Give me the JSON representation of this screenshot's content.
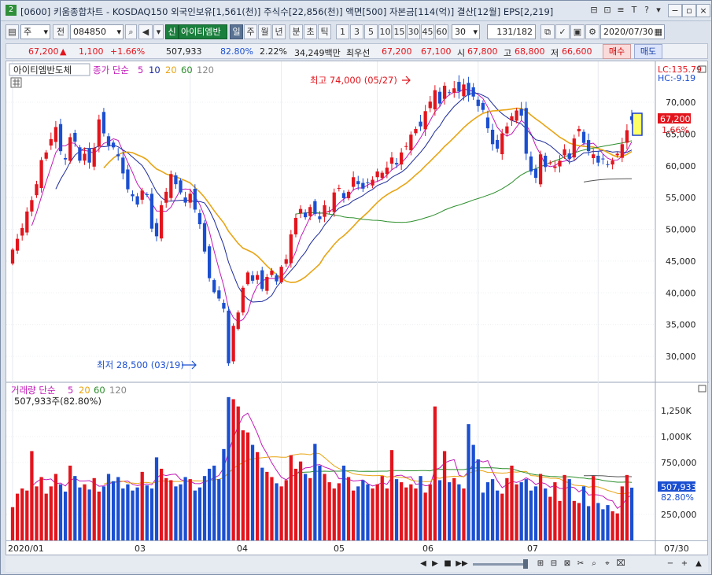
{
  "window": {
    "badge": "2",
    "title": "[0600] 키움종합차트 - KOSDAQ150 외국인보유[1,561(천)] 주식수[22,856(천)] 액면[500] 자본금[114(억)] 결산[12월] EPS[2,219]",
    "title_ctl_labels": [
      "⊟",
      "⊡",
      "≡",
      "T",
      "?",
      "▾"
    ],
    "min_label": "−",
    "max_label": "▫",
    "close_label": "×"
  },
  "toolbar": {
    "market_select": "주",
    "prev_label": "전",
    "code_value": "084850",
    "stock_name": "아이티엠반",
    "shin_label": "신",
    "period_tabs": [
      "일",
      "주",
      "월",
      "년",
      "분",
      "초",
      "틱"
    ],
    "active_period": "일",
    "interval_buttons": [
      "1",
      "3",
      "5",
      "10",
      "15",
      "30",
      "45",
      "60"
    ],
    "interval_value": "30",
    "page_value": "131/182",
    "date_value": "2020/07/30"
  },
  "quote": {
    "price": "67,200",
    "change_arrow": "▲",
    "change": "1,100",
    "change_pct": "+1.66%",
    "volume": "507,933",
    "volume_ratio": "82.80%",
    "turnover": "2.22%",
    "amount": "34,249백만",
    "priority_label": "최우선",
    "best_ask": "67,200",
    "best_bid": "67,100",
    "open_label": "시",
    "open": "67,800",
    "high_label": "고",
    "high": "68,800",
    "low_label": "저",
    "low": "66,600",
    "buy_label": "매수",
    "sell_label": "매도"
  },
  "price_panel": {
    "stock_label": "아이티엠반도체",
    "legend_prefix": "종가 단순",
    "ma_labels": [
      "5",
      "10",
      "20",
      "60",
      "120"
    ],
    "lc_label": "LC:135.79",
    "hc_label": "HC:-9.19",
    "high_annot": "최고 74,000 (05/27)",
    "low_annot": "최저 28,500 (03/19)",
    "last_price_box": "67,200",
    "last_pct": "1.66%",
    "y_ticks": [
      "70,000",
      "65,000",
      "60,000",
      "55,000",
      "50,000",
      "45,000",
      "40,000",
      "35,000",
      "30,000"
    ]
  },
  "volume_panel": {
    "legend_prefix": "거래량 단순",
    "ma_labels": [
      "5",
      "20",
      "60",
      "120"
    ],
    "summary": "507,933주(82.80%)",
    "y_ticks": [
      "1,250K",
      "1,000K",
      "750,000",
      "250,000"
    ],
    "last_box": "507,933",
    "last_pct": "82.80%"
  },
  "x_axis": {
    "labels": [
      "2020/01",
      "03",
      "04",
      "05",
      "06",
      "07"
    ],
    "right_label": "07/30"
  },
  "nav": {
    "buttons": [
      "◀",
      "▶",
      "■",
      "▶▶"
    ],
    "right_icons": [
      "⊞",
      "⊟",
      "⊠",
      "✂",
      "⌕",
      "⌖",
      "⌧",
      "−",
      "+",
      "▲"
    ]
  },
  "colors": {
    "up": "#e3141c",
    "down": "#1b4fd1",
    "ma5": "#c21ab8",
    "ma10": "#1c2a9a",
    "ma20": "#e8a413",
    "ma60": "#2c8f2c",
    "ma120": "#555555"
  },
  "chart_data": [
    {
      "type": "candlestick",
      "title": "아이티엠반도체",
      "x_range": [
        "2020/01/02",
        "2020/07/30"
      ],
      "ylim": [
        26000,
        76000
      ],
      "closes": [
        46800,
        48500,
        50200,
        52800,
        54600,
        57100,
        60900,
        62100,
        64200,
        66100,
        62300,
        61000,
        64500,
        63800,
        60800,
        61900,
        60500,
        62800,
        67300,
        65100,
        63200,
        62900,
        61500,
        58800,
        56300,
        55200,
        53900,
        56100,
        55400,
        50100,
        48900,
        53800,
        55900,
        58700,
        57100,
        55800,
        54200,
        55600,
        53100,
        50800,
        46500,
        42300,
        40100,
        39100,
        37500,
        28900,
        34800,
        36900,
        40800,
        43200,
        41900,
        42800,
        40600,
        42500,
        43500,
        41800,
        44100,
        45300,
        49200,
        51800,
        53200,
        51900,
        53500,
        52400,
        51600,
        53800,
        52900,
        55800,
        56500,
        54900,
        55900,
        58200,
        57100,
        56400,
        57300,
        57800,
        59100,
        58900,
        59700,
        61300,
        60200,
        62100,
        63100,
        64900,
        65800,
        66200,
        68600,
        70100,
        71900,
        69800,
        72600,
        71500,
        72200,
        71700,
        72800,
        71100,
        70900,
        69400,
        68800,
        65900,
        63400,
        62700,
        65100,
        66200,
        67800,
        68700,
        67900,
        61900,
        59100,
        58100,
        61800,
        59800,
        60500,
        59900,
        60800,
        62600,
        61100,
        64300,
        65800,
        63600,
        62300,
        61800,
        60500,
        61100,
        60200,
        60800,
        61900,
        63400,
        65600,
        67200
      ],
      "high": {
        "value": 74000,
        "date": "05/27"
      },
      "low": {
        "value": 28500,
        "date": "03/19"
      },
      "last": 67200,
      "ma_periods": [
        5,
        10,
        20,
        60,
        120
      ]
    },
    {
      "type": "bar",
      "title": "거래량",
      "ylim": [
        0,
        1400000
      ],
      "values": [
        320000,
        450000,
        500000,
        480000,
        860000,
        520000,
        610000,
        450000,
        520000,
        640000,
        540000,
        470000,
        720000,
        620000,
        510000,
        540000,
        490000,
        600000,
        470000,
        520000,
        640000,
        570000,
        610000,
        500000,
        540000,
        480000,
        510000,
        660000,
        530000,
        500000,
        800000,
        690000,
        600000,
        580000,
        520000,
        540000,
        610000,
        590000,
        480000,
        510000,
        620000,
        690000,
        720000,
        590000,
        880000,
        1380000,
        1360000,
        1290000,
        1060000,
        1040000,
        920000,
        850000,
        700000,
        660000,
        610000,
        550000,
        520000,
        580000,
        820000,
        690000,
        760000,
        640000,
        600000,
        930000,
        720000,
        640000,
        560000,
        500000,
        550000,
        720000,
        610000,
        480000,
        520000,
        580000,
        540000,
        500000,
        540000,
        620000,
        500000,
        870000,
        590000,
        560000,
        510000,
        540000,
        500000,
        620000,
        460000,
        540000,
        1290000,
        580000,
        860000,
        560000,
        600000,
        540000,
        500000,
        1120000,
        920000,
        780000,
        460000,
        560000,
        590000,
        480000,
        450000,
        600000,
        720000,
        540000,
        560000,
        590000,
        480000,
        520000,
        640000,
        500000,
        420000,
        560000,
        380000,
        630000,
        590000,
        380000,
        360000,
        520000,
        330000,
        620000,
        360000,
        300000,
        340000,
        280000,
        260000,
        520000,
        630000,
        507933
      ]
    }
  ]
}
